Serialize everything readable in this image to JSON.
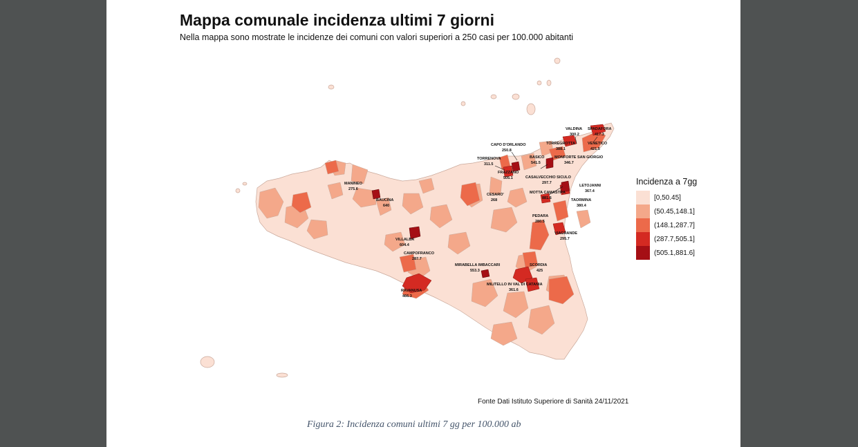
{
  "title": "Mappa comunale incidenza ultimi 7 giorni",
  "subtitle": "Nella mappa sono mostrate le incidenze dei comuni con valori superiori a 250 casi per 100.000 abitanti",
  "legend": {
    "title": "Incidenza a 7gg",
    "items": [
      {
        "label": "[0,50.45]",
        "color": "#fbe0d4"
      },
      {
        "label": "(50.45,148.1]",
        "color": "#f4a88a"
      },
      {
        "label": "(148.1,287.7]",
        "color": "#ec6a4a"
      },
      {
        "label": "(287.7,505.1]",
        "color": "#d42a22"
      },
      {
        "label": "(505.1,881.6]",
        "color": "#a50f15"
      }
    ]
  },
  "labels": [
    {
      "name": "VALDINA",
      "value": "300.2"
    },
    {
      "name": "SPADAFORA",
      "value": "417.3"
    },
    {
      "name": "TORREGROTTA",
      "value": "388.1"
    },
    {
      "name": "VENETICO",
      "value": "421.5"
    },
    {
      "name": "CAPO D'ORLANDO",
      "value": "250.8"
    },
    {
      "name": "BASICO",
      "value": "541.5"
    },
    {
      "name": "MONFORTE SAN GIORGIO",
      "value": "346.7"
    },
    {
      "name": "TORRENOVA",
      "value": "311.5"
    },
    {
      "name": "FRAZZANO",
      "value": "505.1"
    },
    {
      "name": "CASALVECCHIO SICULO",
      "value": "297.7"
    },
    {
      "name": "LETOJANNI",
      "value": "367.4"
    },
    {
      "name": "MOTTA CAMASTRA",
      "value": "881.6"
    },
    {
      "name": "TAORMINA",
      "value": "380.4"
    },
    {
      "name": "CESARO'",
      "value": "268"
    },
    {
      "name": "MANINEO",
      "value": "275.6"
    },
    {
      "name": "BAUCINA",
      "value": "640"
    },
    {
      "name": "PEDARA",
      "value": "280.5"
    },
    {
      "name": "VIAGRANDE",
      "value": "295.7"
    },
    {
      "name": "VILLALBA",
      "value": "604.4"
    },
    {
      "name": "CAMPOFRANCO",
      "value": "287.7"
    },
    {
      "name": "MIRABELLA IMBACCARI",
      "value": "553.3"
    },
    {
      "name": "SCORDIA",
      "value": "425"
    },
    {
      "name": "MILITELLO IN VAL DI CATANIA",
      "value": "361.6"
    },
    {
      "name": "RAVANUSA",
      "value": "466.3"
    }
  ],
  "source": "Fonte Dati Istituto Superiore di Sanità 24/11/2021",
  "caption": "Figura 2: Incidenza comuni ultimi 7 gg per 100.000 ab"
}
